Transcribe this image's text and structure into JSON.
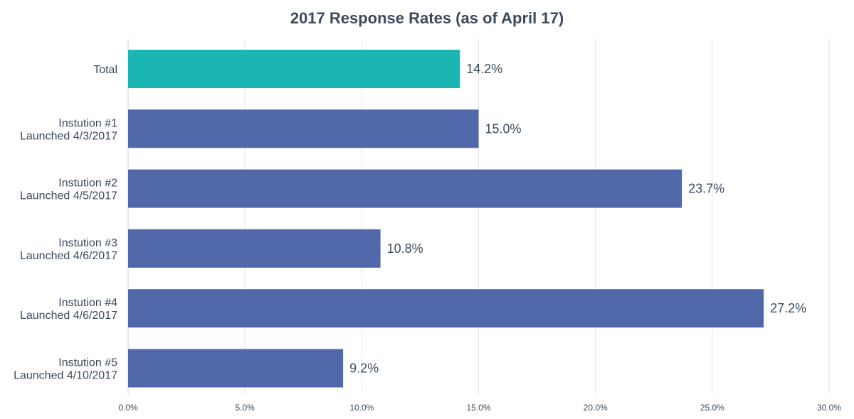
{
  "chart_data": {
    "type": "bar",
    "orientation": "horizontal",
    "title": "2017 Response Rates (as of April 17)",
    "xlabel": "",
    "ylabel": "",
    "xlim": [
      0,
      30
    ],
    "x_ticks": [
      "0.0%",
      "5.0%",
      "10.0%",
      "15.0%",
      "20.0%",
      "25.0%",
      "30.0%"
    ],
    "grid": true,
    "categories": [
      [
        "Total"
      ],
      [
        "Instution #1",
        "Launched 4/3/2017"
      ],
      [
        "Instution #2",
        "Launched 4/5/2017"
      ],
      [
        "Instution #3",
        "Launched 4/6/2017"
      ],
      [
        "Instution #4",
        "Launched 4/6/2017"
      ],
      [
        "Instution #5",
        "Launched 4/10/2017"
      ]
    ],
    "values": [
      14.2,
      15.0,
      23.7,
      10.8,
      27.2,
      9.2
    ],
    "value_labels": [
      "14.2%",
      "15.0%",
      "23.7%",
      "10.8%",
      "27.2%",
      "9.2%"
    ],
    "colors": [
      "#1bb5b3",
      "#5068aa",
      "#5068aa",
      "#5068aa",
      "#5068aa",
      "#5068aa"
    ]
  }
}
